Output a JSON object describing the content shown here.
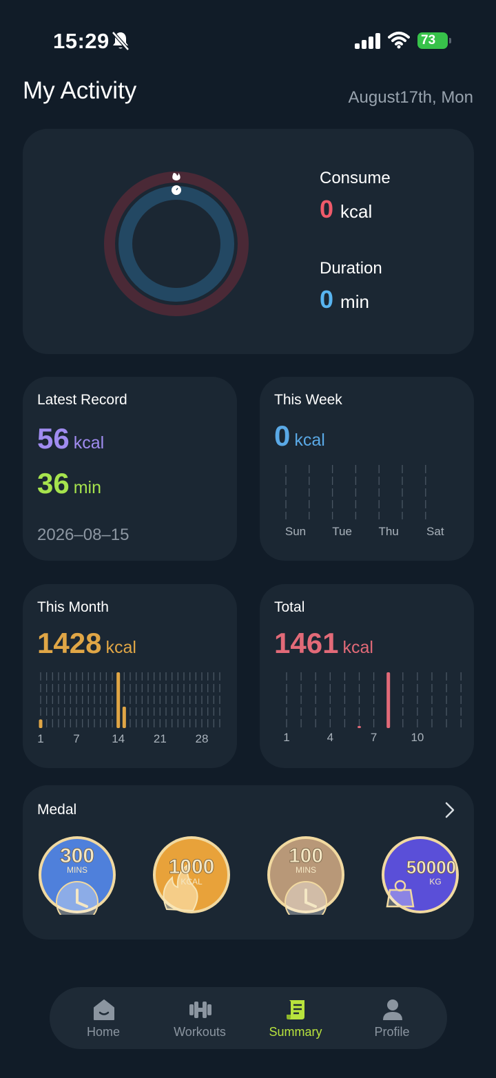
{
  "status_bar": {
    "time": "15:29",
    "battery": "73"
  },
  "header": {
    "title": "My Activity",
    "date": "August17th, Mon"
  },
  "activity": {
    "consume_label": "Consume",
    "consume_value": "0",
    "consume_unit": "kcal",
    "duration_label": "Duration",
    "duration_value": "0",
    "duration_unit": "min"
  },
  "latest_record": {
    "title": "Latest Record",
    "kcal_value": "56",
    "kcal_unit": "kcal",
    "min_value": "36",
    "min_unit": "min",
    "date": "2026–08–15"
  },
  "this_week": {
    "title": "This Week",
    "value": "0",
    "unit": "kcal",
    "day_labels": [
      "Sun",
      "Tue",
      "Thu",
      "Sat"
    ]
  },
  "this_month": {
    "title": "This Month",
    "value": "1428",
    "unit": "kcal",
    "tick_labels": [
      "1",
      "7",
      "14",
      "21",
      "28"
    ]
  },
  "total": {
    "title": "Total",
    "value": "1461",
    "unit": "kcal",
    "tick_labels": [
      "1",
      "4",
      "7",
      "10"
    ]
  },
  "medal": {
    "title": "Medal",
    "items": [
      {
        "value": "300",
        "unit": "MINS",
        "icon": "clock-icon",
        "color": "#4f80db"
      },
      {
        "value": "1000",
        "unit": "KCAL",
        "icon": "flame-icon",
        "color": "#e8a23a"
      },
      {
        "value": "100",
        "unit": "MINS",
        "icon": "clock-icon",
        "color": "#b89878"
      },
      {
        "value": "50000",
        "unit": "KG",
        "icon": "weight-icon",
        "color": "#5a4fd8"
      }
    ]
  },
  "tabs": [
    {
      "label": "Home",
      "icon": "home-icon"
    },
    {
      "label": "Workouts",
      "icon": "dumbbell-icon"
    },
    {
      "label": "Summary",
      "icon": "summary-icon"
    },
    {
      "label": "Profile",
      "icon": "profile-icon"
    }
  ],
  "colors": {
    "accent_green": "#b8e33d",
    "kcal_purple": "#a08cf0",
    "min_green": "#a6e34d",
    "week_blue": "#5aa9e6",
    "month_gold": "#e0a646",
    "total_red": "#e26a78",
    "consume_red": "#ef5a6a",
    "duration_blue": "#58b4f0"
  },
  "chart_data": [
    {
      "type": "bar",
      "title": "This Month",
      "x": [
        1,
        14,
        15
      ],
      "values": [
        2,
        13,
        5
      ],
      "xticks": [
        1,
        7,
        14,
        21,
        28
      ]
    },
    {
      "type": "bar",
      "title": "Total",
      "x": [
        6,
        8
      ],
      "values": [
        1,
        56
      ],
      "xticks": [
        1,
        4,
        7,
        10
      ]
    }
  ]
}
